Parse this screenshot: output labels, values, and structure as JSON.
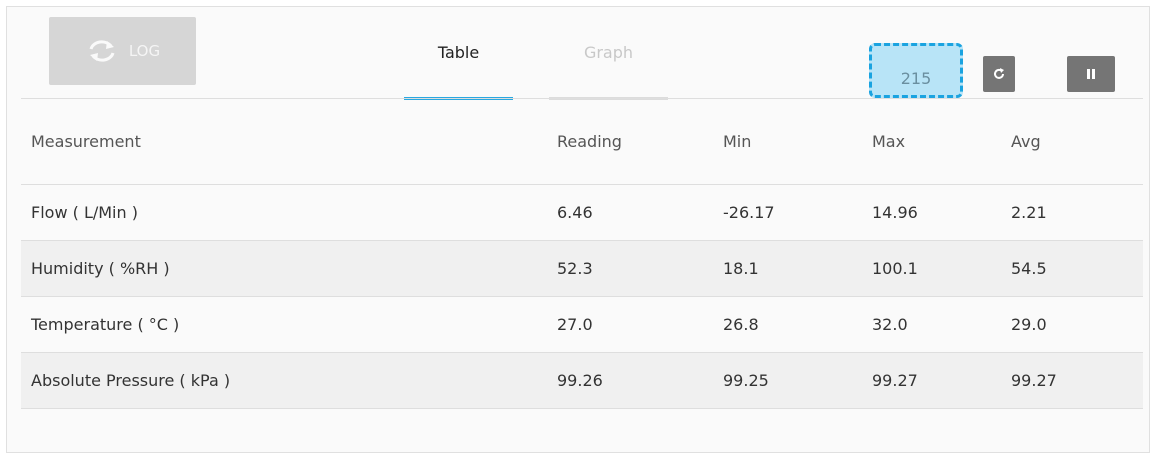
{
  "toolbar": {
    "log_button": "LOG",
    "tabs": [
      "Table",
      "Graph"
    ],
    "counter": "215"
  },
  "table": {
    "header": [
      "Measurement",
      "Reading",
      "Min",
      "Max",
      "Avg"
    ],
    "rows": [
      [
        "Flow ( L/Min )",
        "6.46",
        "-26.17",
        "14.96",
        "2.21"
      ],
      [
        "Humidity ( %RH )",
        "52.3",
        "18.1",
        "100.1",
        "54.5"
      ],
      [
        "Temperature ( °C )",
        "27.0",
        "26.8",
        "32.0",
        "29.0"
      ],
      [
        "Absolute Pressure ( kPa )",
        "99.26",
        "99.25",
        "99.27",
        "99.27"
      ]
    ]
  }
}
